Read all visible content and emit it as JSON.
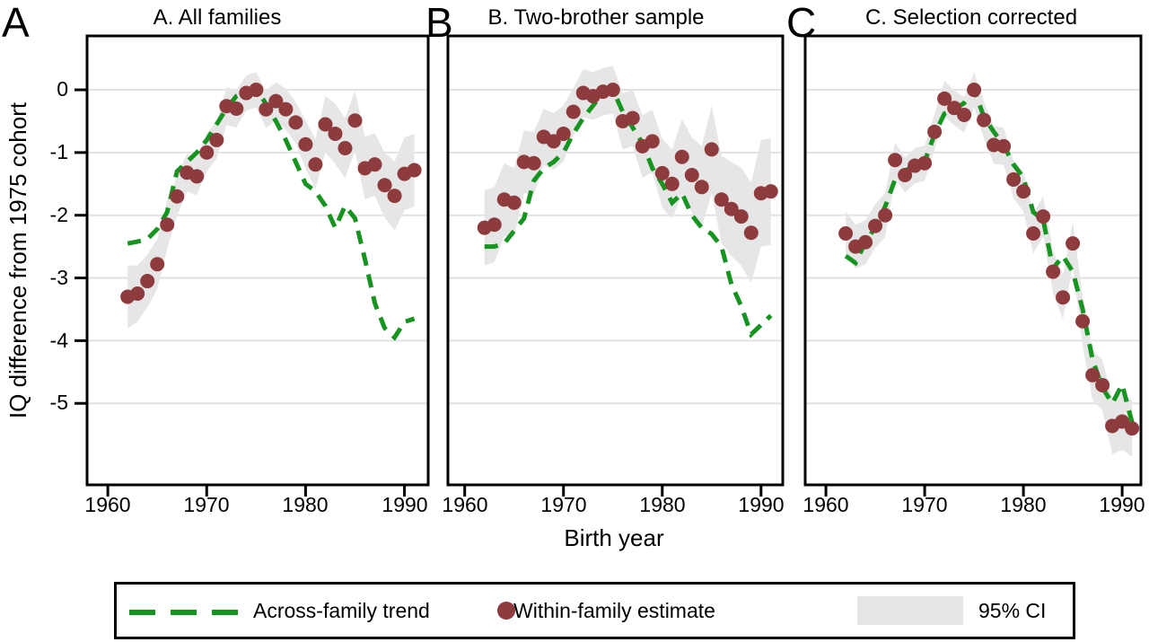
{
  "chart_data": [
    {
      "type": "line",
      "panel_letter": "A",
      "title": "A. All families",
      "xlabel": "Birth year",
      "ylabel": "IQ difference from 1975 cohort",
      "x_ticks": [
        1960,
        1970,
        1980,
        1990
      ],
      "y_ticks": [
        0,
        -1,
        -2,
        -3,
        -4,
        -5
      ],
      "xlim": [
        1957.9,
        1992.4
      ],
      "ylim": [
        -6.3,
        0.86
      ],
      "grid": "horizontal",
      "x": [
        1962,
        1963,
        1964,
        1965,
        1966,
        1967,
        1968,
        1969,
        1970,
        1971,
        1972,
        1973,
        1974,
        1975,
        1976,
        1977,
        1978,
        1979,
        1980,
        1981,
        1982,
        1983,
        1984,
        1985,
        1986,
        1987,
        1988,
        1989,
        1990,
        1991
      ],
      "series": [
        {
          "name": "Across-family trend",
          "style": "dashed-line",
          "values": [
            -2.45,
            -2.42,
            -2.38,
            -2.22,
            -1.95,
            -1.3,
            -1.15,
            -1.0,
            -0.8,
            -0.55,
            -0.3,
            -0.1,
            -0.02,
            0.0,
            -0.22,
            -0.5,
            -0.8,
            -1.15,
            -1.5,
            -1.62,
            -1.85,
            -2.2,
            -1.85,
            -2.05,
            -2.7,
            -3.4,
            -3.8,
            -3.95,
            -3.7,
            -3.65
          ]
        },
        {
          "name": "Within-family estimate",
          "style": "scatter",
          "values": [
            -3.3,
            -3.25,
            -3.05,
            -2.78,
            -2.15,
            -1.7,
            -1.32,
            -1.38,
            -1.0,
            -0.8,
            -0.26,
            -0.3,
            -0.05,
            0.0,
            -0.31,
            -0.18,
            -0.31,
            -0.52,
            -0.87,
            -1.19,
            -0.55,
            -0.7,
            -0.93,
            -0.49,
            -1.25,
            -1.19,
            -1.52,
            -1.69,
            -1.34,
            -1.28
          ]
        },
        {
          "name": "95% CI",
          "style": "band",
          "upper": [
            -2.8,
            -2.8,
            -2.63,
            -2.38,
            -1.77,
            -1.38,
            -1.02,
            -1.08,
            -0.7,
            -0.5,
            0.04,
            0.0,
            0.23,
            0.28,
            -0.01,
            0.12,
            0.02,
            -0.19,
            -0.49,
            -0.79,
            -0.1,
            -0.22,
            -0.45,
            -0.01,
            -0.75,
            -0.69,
            -1.0,
            -1.14,
            -0.76,
            -0.7
          ],
          "lower": [
            -3.8,
            -3.7,
            -3.47,
            -3.18,
            -2.53,
            -2.02,
            -1.62,
            -1.68,
            -1.3,
            -1.1,
            -0.56,
            -0.6,
            -0.33,
            -0.28,
            -0.61,
            -0.48,
            -0.64,
            -0.85,
            -1.25,
            -1.59,
            -1.0,
            -1.18,
            -1.41,
            -0.97,
            -1.75,
            -1.69,
            -2.04,
            -2.24,
            -1.92,
            -1.86
          ]
        }
      ]
    },
    {
      "type": "line",
      "panel_letter": "B",
      "title": "B. Two-brother sample",
      "xlabel": "Birth year",
      "ylabel": "IQ difference from 1975 cohort",
      "x_ticks": [
        1960,
        1970,
        1980,
        1990
      ],
      "y_ticks": [
        0,
        -1,
        -2,
        -3,
        -4,
        -5
      ],
      "xlim": [
        1958.3,
        1992.2
      ],
      "ylim": [
        -6.3,
        0.86
      ],
      "grid": "horizontal",
      "x": [
        1962,
        1963,
        1964,
        1965,
        1966,
        1967,
        1968,
        1969,
        1970,
        1971,
        1972,
        1973,
        1974,
        1975,
        1976,
        1977,
        1978,
        1979,
        1980,
        1981,
        1982,
        1983,
        1984,
        1985,
        1986,
        1987,
        1988,
        1989,
        1990,
        1991
      ],
      "series": [
        {
          "name": "Across-family trend",
          "style": "dashed-line",
          "values": [
            -2.5,
            -2.5,
            -2.45,
            -2.25,
            -2.05,
            -1.45,
            -1.25,
            -1.15,
            -1.0,
            -0.7,
            -0.45,
            -0.25,
            -0.05,
            0.0,
            -0.35,
            -0.6,
            -0.85,
            -1.25,
            -1.5,
            -1.8,
            -1.65,
            -2.0,
            -2.2,
            -2.3,
            -2.5,
            -3.1,
            -3.45,
            -3.9,
            -3.75,
            -3.6
          ]
        },
        {
          "name": "Within-family estimate",
          "style": "scatter",
          "values": [
            -2.2,
            -2.15,
            -1.75,
            -1.8,
            -1.15,
            -1.17,
            -0.75,
            -0.82,
            -0.7,
            -0.35,
            -0.05,
            -0.1,
            -0.03,
            0.0,
            -0.5,
            -0.45,
            -0.9,
            -0.82,
            -1.33,
            -1.5,
            -1.07,
            -1.36,
            -1.55,
            -0.95,
            -1.75,
            -1.9,
            -2.02,
            -2.28,
            -1.65,
            -1.62
          ]
        },
        {
          "name": "95% CI",
          "style": "band",
          "upper": [
            -1.6,
            -1.55,
            -1.17,
            -1.25,
            -0.65,
            -0.67,
            -0.3,
            -0.37,
            -0.25,
            0.03,
            0.33,
            0.28,
            0.35,
            0.38,
            -0.05,
            0.0,
            -0.4,
            -0.32,
            -0.78,
            -0.95,
            -0.47,
            -0.76,
            -0.9,
            -0.25,
            -1.05,
            -1.15,
            -1.24,
            -1.48,
            -0.8,
            -0.77
          ],
          "lower": [
            -2.8,
            -2.75,
            -2.33,
            -2.35,
            -1.65,
            -1.67,
            -1.2,
            -1.27,
            -1.15,
            -0.73,
            -0.43,
            -0.48,
            -0.41,
            -0.38,
            -0.95,
            -0.9,
            -1.4,
            -1.32,
            -1.88,
            -2.05,
            -1.67,
            -1.96,
            -2.2,
            -1.65,
            -2.45,
            -2.65,
            -2.8,
            -3.08,
            -2.5,
            -2.47
          ]
        }
      ]
    },
    {
      "type": "line",
      "panel_letter": "C",
      "title": "C. Selection corrected",
      "xlabel": "Birth year",
      "ylabel": "IQ difference from 1975 cohort",
      "x_ticks": [
        1960,
        1970,
        1980,
        1990
      ],
      "y_ticks": [
        0,
        -1,
        -2,
        -3,
        -4,
        -5
      ],
      "xlim": [
        1957.9,
        1991.9
      ],
      "ylim": [
        -6.3,
        0.86
      ],
      "grid": "horizontal",
      "x": [
        1962,
        1963,
        1964,
        1965,
        1966,
        1967,
        1968,
        1969,
        1970,
        1971,
        1972,
        1973,
        1974,
        1975,
        1976,
        1977,
        1978,
        1979,
        1980,
        1981,
        1982,
        1983,
        1984,
        1985,
        1986,
        1987,
        1988,
        1989,
        1990,
        1991
      ],
      "series": [
        {
          "name": "Across-family trend",
          "style": "dashed-line",
          "values": [
            -2.65,
            -2.76,
            -2.43,
            -2.19,
            -1.86,
            -1.43,
            -1.29,
            -1.21,
            -1.14,
            -0.71,
            -0.38,
            -0.31,
            -0.21,
            0.0,
            -0.43,
            -0.67,
            -0.88,
            -1.19,
            -1.4,
            -1.95,
            -2.07,
            -2.85,
            -2.65,
            -2.9,
            -3.5,
            -4.3,
            -4.75,
            -5.0,
            -4.7,
            -5.3
          ]
        },
        {
          "name": "Within-family estimate",
          "style": "scatter",
          "values": [
            -2.29,
            -2.5,
            -2.43,
            -2.17,
            -2.0,
            -1.12,
            -1.36,
            -1.21,
            -1.17,
            -0.67,
            -0.14,
            -0.29,
            -0.4,
            0.0,
            -0.48,
            -0.88,
            -0.9,
            -1.43,
            -1.62,
            -2.29,
            -2.02,
            -2.9,
            -3.31,
            -2.45,
            -3.69,
            -4.55,
            -4.71,
            -5.36,
            -5.29,
            -5.4
          ]
        },
        {
          "name": "95% CI",
          "style": "band",
          "upper": [
            -1.94,
            -2.15,
            -2.08,
            -1.82,
            -1.65,
            -0.84,
            -1.08,
            -0.93,
            -0.89,
            -0.39,
            0.14,
            -0.01,
            -0.12,
            0.28,
            -0.18,
            -0.58,
            -0.6,
            -1.13,
            -1.3,
            -1.97,
            -1.7,
            -2.55,
            -2.96,
            -2.1,
            -3.29,
            -4.15,
            -4.31,
            -4.91,
            -4.84,
            -4.95
          ],
          "lower": [
            -2.64,
            -2.85,
            -2.78,
            -2.52,
            -2.35,
            -1.4,
            -1.64,
            -1.49,
            -1.45,
            -0.95,
            -0.42,
            -0.57,
            -0.68,
            -0.28,
            -0.78,
            -1.18,
            -1.2,
            -1.73,
            -1.94,
            -2.61,
            -2.34,
            -3.25,
            -3.66,
            -2.8,
            -4.09,
            -4.95,
            -5.11,
            -5.81,
            -5.74,
            -5.85
          ]
        }
      ]
    }
  ],
  "legend": {
    "items": [
      {
        "label": "Across-family trend",
        "swatch": "dashed-line"
      },
      {
        "label": "Within-family estimate",
        "swatch": "dot"
      },
      {
        "label": "95% CI",
        "swatch": "band"
      }
    ]
  },
  "colors": {
    "trend_green": "#169420",
    "dot_maroon": "#8E3B3E",
    "ci_gray": "#E6E6E6",
    "gridline": "#E2E2E2",
    "axis": "#000000"
  }
}
